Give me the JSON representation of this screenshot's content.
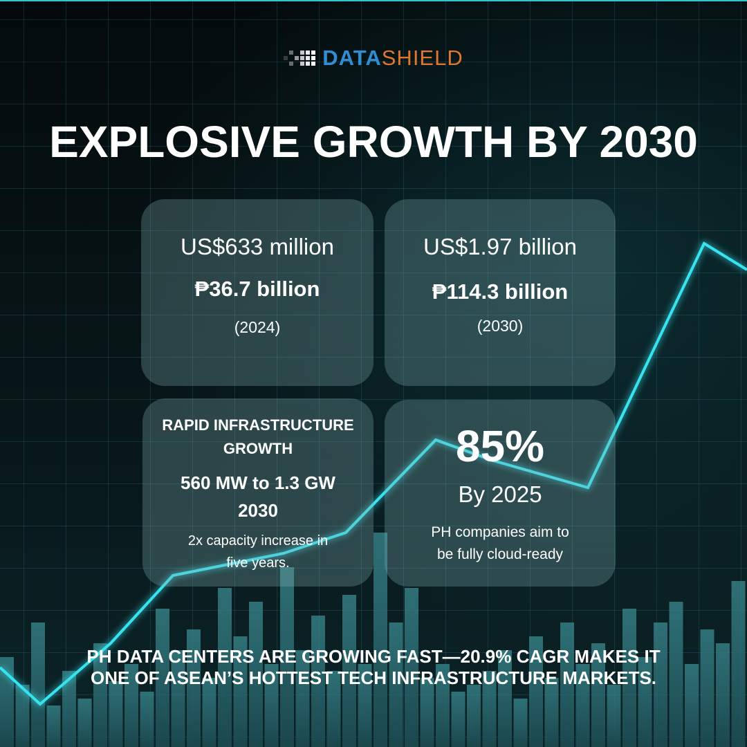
{
  "brand": {
    "name_part1": "DATA",
    "name_part2": "SHIELD",
    "primary_color": "#2f8fd6",
    "accent_color": "#e0762f"
  },
  "title": "EXPLOSIVE GROWTH BY 2030",
  "cards": {
    "market_2024": {
      "usd": "US$633 million",
      "php": "₱36.7 billion",
      "year": "(2024)"
    },
    "market_2030": {
      "usd": "US$1.97 billion",
      "php": "₱114.3 billion",
      "year": "(2030)"
    },
    "infrastructure": {
      "heading_line1": "RAPID INFRASTRUCTURE",
      "heading_line2": "GROWTH",
      "value_line1": "560 MW to 1.3 GW",
      "value_line2": "2030",
      "note_line1": "2x capacity increase in",
      "note_line2": "five years."
    },
    "cloud": {
      "percent": "85%",
      "by_year": "By 2025",
      "note_line1": "PH companies aim to",
      "note_line2": "be fully cloud-ready"
    }
  },
  "footer": {
    "line1": "PH DATA CENTERS ARE GROWING FAST—20.9% CAGR MAKES IT",
    "line2": "ONE OF ASEAN’S HOTTEST TECH INFRASTRUCTURE MARKETS."
  },
  "theme": {
    "background": "#050b0d",
    "line_glow": "#37e3f0",
    "bar_fill": "#2f6d73"
  }
}
